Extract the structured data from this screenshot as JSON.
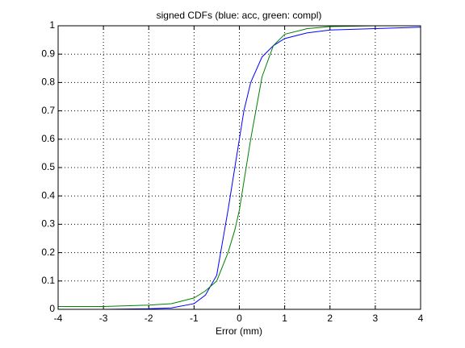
{
  "chart_data": {
    "type": "line",
    "title": "signed CDFs (blue: acc, green: compl)",
    "xlabel": "Error (mm)",
    "x": [
      -4,
      -3,
      -2,
      -1.5,
      -1,
      -0.75,
      -0.5,
      -0.25,
      -0.1,
      0,
      0.1,
      0.25,
      0.5,
      0.75,
      1,
      1.5,
      2,
      3,
      4
    ],
    "series": [
      {
        "color": "#0000ff",
        "values": [
          0,
          0,
          0.002,
          0.005,
          0.02,
          0.05,
          0.12,
          0.35,
          0.5,
          0.6,
          0.7,
          0.8,
          0.89,
          0.93,
          0.955,
          0.975,
          0.985,
          0.99,
          0.995
        ]
      },
      {
        "color": "#008000",
        "values": [
          0.01,
          0.01,
          0.015,
          0.02,
          0.04,
          0.065,
          0.1,
          0.2,
          0.28,
          0.35,
          0.45,
          0.6,
          0.82,
          0.93,
          0.97,
          0.99,
          0.997,
          1,
          1
        ]
      }
    ],
    "xlim": [
      -4,
      4
    ],
    "ylim": [
      0,
      1
    ],
    "xticks": [
      -4,
      -3,
      -2,
      -1,
      0,
      1,
      2,
      3,
      4
    ],
    "yticks": [
      0,
      0.1,
      0.2,
      0.3,
      0.4,
      0.5,
      0.6,
      0.7,
      0.8,
      0.9,
      1
    ],
    "grid": true
  }
}
